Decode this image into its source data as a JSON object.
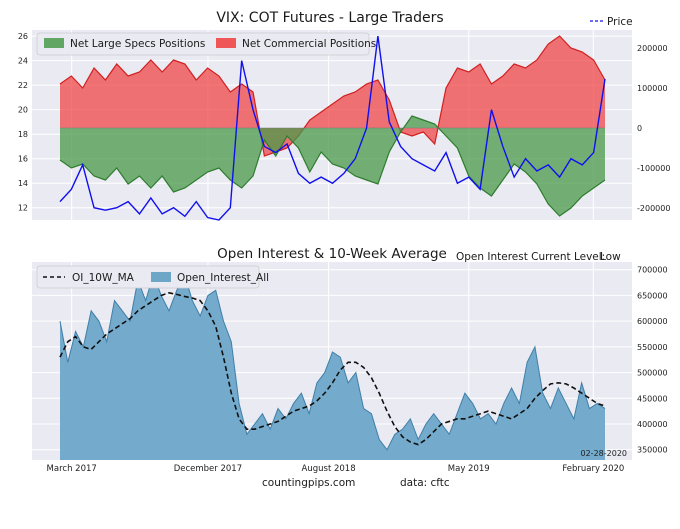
{
  "chart_data": [
    {
      "type": "area",
      "title": "VIX: COT Futures - Large Traders",
      "price_legend": "Price",
      "legend": [
        "Net Large Specs Positions",
        "Net Commercial Positions"
      ],
      "y_left_ticks": [
        "12",
        "14",
        "16",
        "18",
        "20",
        "22",
        "24",
        "26"
      ],
      "y_right_ticks": [
        "200000",
        "100000",
        "0",
        "-100000",
        "-200000"
      ],
      "ylim_left": [
        11,
        26.5
      ],
      "ylim_right": [
        -230000,
        245000
      ],
      "grid": true,
      "legend_position": "top-left",
      "x": [
        0,
        3,
        6,
        9,
        12,
        15,
        18,
        21,
        24,
        27,
        30,
        33,
        36,
        39,
        42,
        45,
        48,
        51,
        54,
        57,
        60,
        63,
        66,
        69,
        72,
        75,
        78,
        81,
        84,
        87,
        90,
        93,
        96,
        99,
        102,
        105,
        108,
        111,
        114,
        117,
        120,
        123,
        126,
        129,
        132,
        135,
        138,
        141,
        144
      ],
      "series": [
        {
          "name": "Net Large Specs Positions",
          "color": "#4a9a4a",
          "values": [
            -80000,
            -100000,
            -90000,
            -120000,
            -130000,
            -100000,
            -140000,
            -120000,
            -150000,
            -120000,
            -160000,
            -150000,
            -130000,
            -110000,
            -100000,
            -130000,
            -150000,
            -120000,
            -30000,
            -70000,
            -20000,
            -50000,
            -110000,
            -60000,
            -90000,
            -100000,
            -120000,
            -130000,
            -140000,
            -60000,
            -10000,
            30000,
            20000,
            10000,
            -20000,
            -50000,
            -120000,
            -150000,
            -170000,
            -130000,
            -90000,
            -110000,
            -140000,
            -190000,
            -220000,
            -200000,
            -170000,
            -150000,
            -130000
          ]
        },
        {
          "name": "Net Commercial Positions",
          "color": "#f03c3c",
          "values": [
            110000,
            130000,
            100000,
            150000,
            120000,
            160000,
            130000,
            140000,
            170000,
            140000,
            170000,
            160000,
            120000,
            150000,
            130000,
            90000,
            110000,
            90000,
            -70000,
            -60000,
            -50000,
            -20000,
            20000,
            40000,
            60000,
            80000,
            90000,
            110000,
            120000,
            70000,
            -10000,
            -20000,
            -10000,
            -40000,
            100000,
            150000,
            140000,
            160000,
            110000,
            130000,
            160000,
            150000,
            170000,
            210000,
            230000,
            200000,
            190000,
            170000,
            120000
          ]
        },
        {
          "name": "Price",
          "color": "#1010ee",
          "values": [
            12.5,
            13.5,
            15.5,
            12.0,
            11.8,
            12.0,
            12.5,
            11.5,
            12.8,
            11.5,
            12.0,
            11.3,
            12.5,
            11.2,
            11.0,
            12.0,
            24.0,
            20.0,
            17.0,
            16.5,
            17.2,
            14.8,
            14.0,
            14.5,
            14.0,
            14.8,
            16.0,
            18.5,
            26.0,
            19.0,
            17.0,
            16.0,
            15.5,
            15.0,
            16.5,
            14.0,
            14.5,
            13.5,
            20.0,
            17.0,
            14.5,
            16.0,
            15.0,
            15.5,
            14.5,
            16.0,
            15.5,
            16.5,
            22.5
          ]
        }
      ]
    },
    {
      "type": "area",
      "title": "Open Interest & 10-Week Average",
      "status_label": "Open Interest Current Level:",
      "status_value": "Low",
      "status_color": "#e00000",
      "legend": [
        "OI_10W_MA",
        "Open_Interest_All"
      ],
      "legend_position": "top-left",
      "grid": true,
      "y_ticks": [
        "350000",
        "400000",
        "450000",
        "500000",
        "550000",
        "600000",
        "650000",
        "700000"
      ],
      "ylim": [
        330000,
        715000
      ],
      "x_ticks": [
        "March 2017",
        "December 2017",
        "August 2018",
        "May 2019",
        "February 2020"
      ],
      "x_tick_positions": [
        3,
        38,
        69,
        105,
        137
      ],
      "annotation": "02-28-2020",
      "x": [
        0,
        2,
        4,
        6,
        8,
        10,
        12,
        14,
        16,
        18,
        20,
        22,
        24,
        26,
        28,
        30,
        32,
        34,
        36,
        38,
        40,
        42,
        44,
        46,
        48,
        50,
        52,
        54,
        56,
        58,
        60,
        62,
        64,
        66,
        68,
        70,
        72,
        74,
        76,
        78,
        80,
        82,
        84,
        86,
        88,
        90,
        92,
        94,
        96,
        98,
        100,
        102,
        104,
        106,
        108,
        110,
        112,
        114,
        116,
        118,
        120,
        122,
        124,
        126,
        128,
        130,
        132,
        134,
        136,
        138,
        140
      ],
      "series": [
        {
          "name": "Open_Interest_All",
          "color": "#6ea6c8",
          "values": [
            600000,
            520000,
            580000,
            550000,
            620000,
            600000,
            560000,
            640000,
            620000,
            600000,
            680000,
            640000,
            690000,
            650000,
            620000,
            660000,
            690000,
            640000,
            610000,
            650000,
            660000,
            600000,
            560000,
            440000,
            380000,
            400000,
            420000,
            390000,
            430000,
            410000,
            440000,
            460000,
            420000,
            480000,
            500000,
            540000,
            530000,
            480000,
            500000,
            430000,
            420000,
            370000,
            350000,
            380000,
            390000,
            410000,
            370000,
            400000,
            420000,
            400000,
            380000,
            420000,
            460000,
            440000,
            410000,
            420000,
            400000,
            440000,
            470000,
            440000,
            520000,
            550000,
            460000,
            430000,
            470000,
            440000,
            410000,
            480000,
            430000,
            440000,
            430000
          ]
        },
        {
          "name": "OI_10W_MA",
          "color": "#111111",
          "values": [
            530000,
            560000,
            570000,
            550000,
            545000,
            560000,
            575000,
            585000,
            595000,
            605000,
            620000,
            630000,
            640000,
            650000,
            655000,
            652000,
            648000,
            645000,
            640000,
            620000,
            590000,
            530000,
            460000,
            410000,
            390000,
            390000,
            395000,
            400000,
            405000,
            415000,
            425000,
            430000,
            435000,
            445000,
            460000,
            480000,
            505000,
            520000,
            520000,
            510000,
            490000,
            460000,
            425000,
            395000,
            375000,
            365000,
            360000,
            370000,
            385000,
            400000,
            405000,
            410000,
            410000,
            415000,
            420000,
            425000,
            420000,
            415000,
            410000,
            420000,
            430000,
            450000,
            465000,
            478000,
            480000,
            478000,
            470000,
            460000,
            450000,
            440000,
            435000
          ]
        }
      ]
    }
  ],
  "footer": {
    "source": "countingpips.com",
    "data_credit": "data: cftc"
  }
}
